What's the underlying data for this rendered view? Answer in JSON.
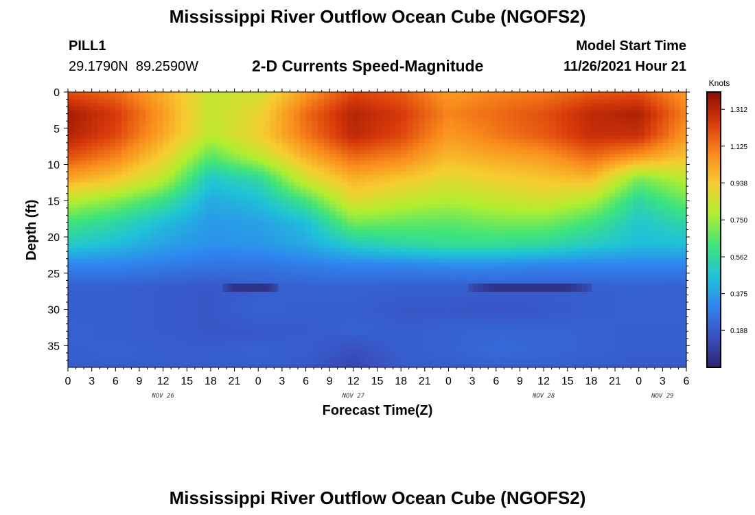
{
  "page": {
    "title": "Mississippi River Outflow Ocean Cube (NGOFS2)",
    "title_repeat": "Mississippi River Outflow Ocean Cube (NGOFS2)",
    "station_id": "PILL1",
    "coordinates": "29.1790N  89.2590W",
    "chart_title": "2-D Currents Speed-Magnitude",
    "model_start_label": "Model Start Time",
    "model_start_value": "11/26/2021 Hour 21"
  },
  "chart_data": {
    "type": "heatmap",
    "title": "2-D Currents Speed-Magnitude",
    "xlabel": "Forecast Time(Z)",
    "ylabel": "Depth (ft)",
    "y_axis": {
      "inverted": true,
      "range": [
        0,
        38
      ],
      "ticks": [
        0,
        5,
        10,
        15,
        20,
        25,
        30,
        35
      ]
    },
    "x_axis": {
      "range_hours": [
        0,
        78
      ],
      "tick_labels": [
        "0",
        "3",
        "6",
        "9",
        "12",
        "15",
        "18",
        "21",
        "0",
        "3",
        "6",
        "9",
        "12",
        "15",
        "18",
        "21",
        "0",
        "3",
        "6",
        "9",
        "12",
        "15",
        "18",
        "21",
        "0",
        "3",
        "6"
      ],
      "date_labels": [
        {
          "label": "NOV 26",
          "hour": 12
        },
        {
          "label": "NOV 27",
          "hour": 36
        },
        {
          "label": "NOV 28",
          "hour": 60
        },
        {
          "label": "NOV 29",
          "hour": 75
        }
      ]
    },
    "colorbar": {
      "title": "Knots",
      "ticks": [
        0.188,
        0.375,
        0.562,
        0.75,
        0.938,
        1.125,
        1.312
      ],
      "range": [
        0,
        1.4
      ],
      "colors": [
        "#2c2570",
        "#3a4fc0",
        "#2f86f0",
        "#1fc4d6",
        "#3fe47a",
        "#b0ee30",
        "#f6cd30",
        "#f98a1c",
        "#d83a0a",
        "#8c0e02"
      ]
    },
    "speed_grid": {
      "x_hours": [
        0,
        6,
        12,
        18,
        24,
        30,
        36,
        42,
        48,
        54,
        60,
        66,
        72,
        78
      ],
      "depths_ft": [
        0,
        3,
        6,
        9,
        12,
        15,
        18,
        21,
        24,
        27,
        30,
        33,
        36,
        38
      ],
      "values_knots": [
        [
          1.2,
          1.15,
          1.0,
          0.82,
          0.85,
          1.05,
          1.22,
          1.18,
          1.05,
          1.1,
          1.12,
          1.18,
          1.2,
          1.05
        ],
        [
          1.35,
          1.25,
          1.05,
          0.82,
          0.9,
          1.15,
          1.32,
          1.25,
          1.1,
          1.15,
          1.2,
          1.3,
          1.33,
          1.1
        ],
        [
          1.32,
          1.22,
          1.02,
          0.8,
          0.92,
          1.12,
          1.3,
          1.22,
          1.05,
          1.12,
          1.18,
          1.28,
          1.28,
          1.05
        ],
        [
          1.2,
          1.1,
          0.92,
          0.65,
          0.8,
          1.0,
          1.15,
          1.1,
          0.98,
          1.02,
          1.05,
          1.15,
          1.05,
          0.95
        ],
        [
          1.02,
          0.95,
          0.8,
          0.48,
          0.55,
          0.85,
          1.0,
          0.95,
          0.88,
          0.92,
          0.95,
          0.98,
          0.7,
          0.8
        ],
        [
          0.8,
          0.72,
          0.6,
          0.4,
          0.45,
          0.62,
          0.88,
          0.82,
          0.78,
          0.82,
          0.85,
          0.78,
          0.55,
          0.68
        ],
        [
          0.62,
          0.55,
          0.45,
          0.36,
          0.38,
          0.45,
          0.7,
          0.68,
          0.66,
          0.7,
          0.7,
          0.62,
          0.48,
          0.55
        ],
        [
          0.5,
          0.45,
          0.38,
          0.34,
          0.35,
          0.4,
          0.5,
          0.55,
          0.58,
          0.58,
          0.56,
          0.5,
          0.45,
          0.46
        ],
        [
          0.3,
          0.3,
          0.28,
          0.26,
          0.26,
          0.28,
          0.3,
          0.3,
          0.32,
          0.32,
          0.3,
          0.3,
          0.3,
          0.3
        ],
        [
          0.2,
          0.2,
          0.19,
          0.18,
          0.2,
          0.21,
          0.21,
          0.2,
          0.2,
          0.2,
          0.2,
          0.2,
          0.21,
          0.2
        ],
        [
          0.2,
          0.2,
          0.19,
          0.18,
          0.21,
          0.2,
          0.2,
          0.18,
          0.18,
          0.17,
          0.18,
          0.2,
          0.21,
          0.21
        ],
        [
          0.21,
          0.2,
          0.19,
          0.18,
          0.18,
          0.19,
          0.21,
          0.2,
          0.21,
          0.22,
          0.22,
          0.21,
          0.2,
          0.2
        ],
        [
          0.2,
          0.21,
          0.2,
          0.2,
          0.21,
          0.2,
          0.15,
          0.2,
          0.21,
          0.23,
          0.22,
          0.21,
          0.2,
          0.2
        ],
        [
          0.19,
          0.19,
          0.19,
          0.19,
          0.19,
          0.18,
          0.12,
          0.19,
          0.19,
          0.2,
          0.2,
          0.19,
          0.18,
          0.18
        ]
      ]
    },
    "low_speed_bands": [
      {
        "x_start_hours": 19.5,
        "x_end_hours": 26.5,
        "depth_ft": 27,
        "value_knots": 0.05
      },
      {
        "x_start_hours": 50.5,
        "x_end_hours": 66.0,
        "depth_ft": 27,
        "value_knots": 0.05
      }
    ]
  }
}
